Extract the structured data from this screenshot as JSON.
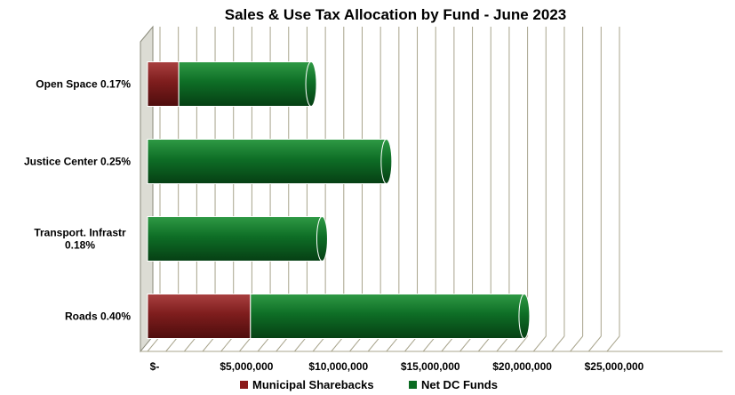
{
  "chart_data": {
    "type": "bar",
    "orientation": "horizontal",
    "stacked": true,
    "three_d": true,
    "title": "Sales & Use Tax Allocation by Fund - June 2023",
    "categories": [
      [
        "Open Space 0.17%"
      ],
      [
        "Justice Center 0.25%"
      ],
      [
        "Transport. Infrastr",
        "0.18%"
      ],
      [
        "Roads 0.40%"
      ]
    ],
    "series": [
      {
        "name": "Municipal Sharebacks",
        "color": "#8b1a1a",
        "values": [
          1700000,
          0,
          0,
          5600000
        ]
      },
      {
        "name": "Net DC Funds",
        "color": "#0b6b22",
        "values": [
          7200000,
          13000000,
          9500000,
          14900000
        ]
      }
    ],
    "xlim": [
      0,
      25000000
    ],
    "x_ticks": [
      {
        "value": 0,
        "label": "$-"
      },
      {
        "value": 5000000,
        "label": "$5,000,000"
      },
      {
        "value": 10000000,
        "label": "$10,000,000"
      },
      {
        "value": 15000000,
        "label": "$15,000,000"
      },
      {
        "value": 20000000,
        "label": "$20,000,000"
      },
      {
        "value": 25000000,
        "label": "$25,000,000"
      }
    ],
    "grid": true,
    "legend": "bottom"
  }
}
